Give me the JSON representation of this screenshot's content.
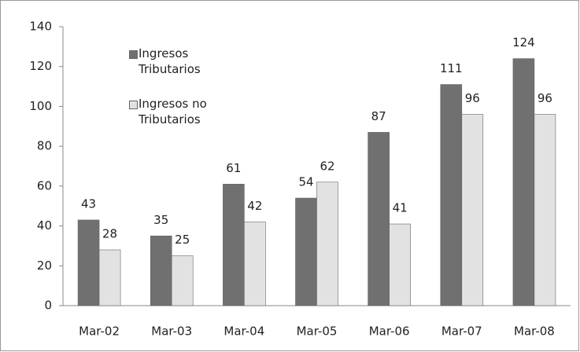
{
  "chart_data": {
    "type": "bar",
    "categories": [
      "Mar-02",
      "Mar-03",
      "Mar-04",
      "Mar-05",
      "Mar-06",
      "Mar-07",
      "Mar-08"
    ],
    "series": [
      {
        "name": "Ingresos Tributarios",
        "color": "#707070",
        "values": [
          43,
          35,
          61,
          54,
          87,
          111,
          124
        ]
      },
      {
        "name": "Ingresos no Tributarios",
        "color": "#e2e2e2",
        "values": [
          28,
          25,
          42,
          62,
          41,
          96,
          96
        ]
      }
    ],
    "ylim": [
      0,
      140
    ],
    "yticks": [
      0,
      20,
      40,
      60,
      80,
      100,
      120,
      140
    ],
    "grid": false,
    "legend": "top-left"
  }
}
